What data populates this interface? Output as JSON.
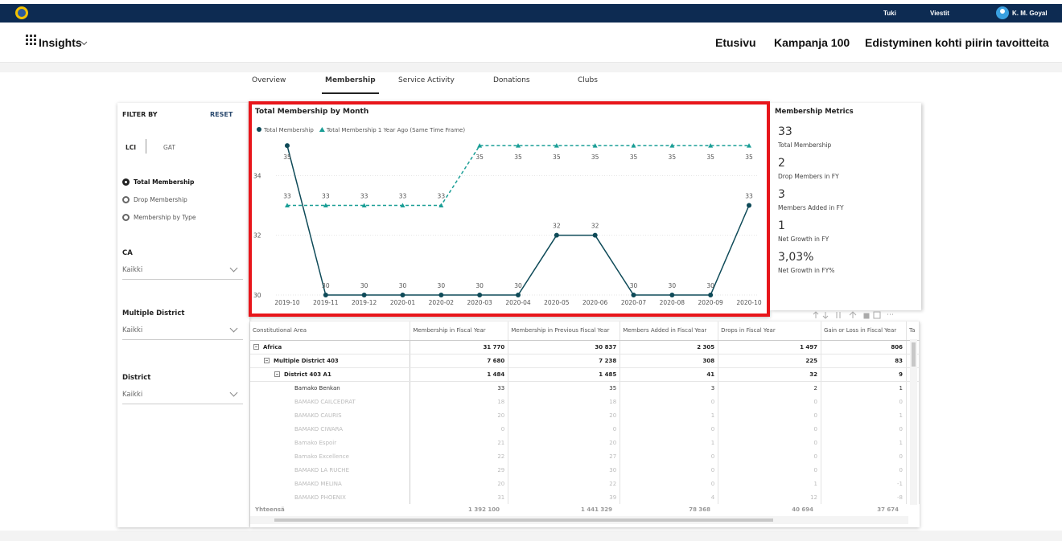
{
  "header": {
    "user_menu": [
      "Tuki",
      "Viestit"
    ],
    "user_name": "K. M. Goyal",
    "app_name": "Insights",
    "nav": [
      "Etusivu",
      "Kampanja 100",
      "Edistyminen kohti piirin tavoitteita"
    ]
  },
  "tabs": {
    "items": [
      "Overview",
      "Membership",
      "Service Activity",
      "Donations",
      "Clubs"
    ],
    "active": 1
  },
  "filters": {
    "title": "FILTER BY",
    "reset": "RESET",
    "toggle": [
      "LCI",
      "GAT"
    ],
    "options": [
      "Total Membership",
      "Drop Membership",
      "Membership by Type"
    ],
    "selected": 0,
    "dropdowns": [
      {
        "label": "CA",
        "value": "Kaikki"
      },
      {
        "label": "Multiple District",
        "value": "Kaikki"
      },
      {
        "label": "District",
        "value": "Kaikki"
      }
    ]
  },
  "chart_data": {
    "type": "line",
    "title": "Total Membership by Month",
    "categories": [
      "2019-10",
      "2019-11",
      "2019-12",
      "2020-01",
      "2020-02",
      "2020-03",
      "2020-04",
      "2020-05",
      "2020-06",
      "2020-07",
      "2020-08",
      "2020-09",
      "2020-10"
    ],
    "series": [
      {
        "name": "Total Membership",
        "color": "#0e4a58",
        "marker": "circle",
        "line_style": "solid",
        "values": [
          35,
          30,
          30,
          30,
          30,
          30,
          30,
          32,
          32,
          30,
          30,
          30,
          33
        ]
      },
      {
        "name": "Total Membership 1 Year Ago (Same Time Frame)",
        "color": "#1a9e96",
        "marker": "triangle",
        "line_style": "dashed",
        "values": [
          33,
          33,
          33,
          33,
          33,
          35,
          35,
          35,
          35,
          35,
          35,
          35,
          35
        ]
      }
    ],
    "ylim": [
      30,
      35.3
    ],
    "yticks": [
      30,
      32,
      34
    ],
    "grid": true
  },
  "metrics": {
    "title": "Membership Metrics",
    "items": [
      {
        "value": "33",
        "label": "Total Membership"
      },
      {
        "value": "2",
        "label": "Drop Members in FY"
      },
      {
        "value": "3",
        "label": "Members Added in FY"
      },
      {
        "value": "1",
        "label": "Net Growth in FY"
      },
      {
        "value": "3,03%",
        "label": "Net Growth in FY%"
      }
    ]
  },
  "table": {
    "columns": [
      "Constitutional Area",
      "Membership in Fiscal Year",
      "Membership in Previous Fiscal Year",
      "Members Added in Fiscal Year",
      "Drops in Fiscal Year",
      "Gain or Loss in Fiscal Year",
      "Ta"
    ],
    "tree": [
      {
        "cells": [
          "Africa",
          "31 770",
          "30 837",
          "2 305",
          "1 497",
          "806"
        ],
        "children": [
          {
            "cells": [
              "Multiple District 403",
              "7 680",
              "7 238",
              "308",
              "225",
              "83"
            ],
            "children": [
              {
                "cells": [
                  "District 403 A1",
                  "1 484",
                  "1 485",
                  "41",
                  "32",
                  "9"
                ],
                "children": [
                  {
                    "cells": [
                      "Bamako Benkan",
                      "33",
                      "35",
                      "3",
                      "2",
                      "1"
                    ]
                  },
                  {
                    "cells": [
                      "BAMAKO CAILCEDRAT",
                      "18",
                      "18",
                      "0",
                      "0",
                      "0"
                    ]
                  },
                  {
                    "cells": [
                      "BAMAKO CAURIS",
                      "20",
                      "20",
                      "1",
                      "0",
                      "1"
                    ]
                  },
                  {
                    "cells": [
                      "BAMAKO CIWARA",
                      "0",
                      "0",
                      "0",
                      "0",
                      "0"
                    ]
                  },
                  {
                    "cells": [
                      "Bamako Espoir",
                      "21",
                      "20",
                      "1",
                      "0",
                      "1"
                    ]
                  },
                  {
                    "cells": [
                      "Bamako Excellence",
                      "22",
                      "27",
                      "0",
                      "0",
                      "0"
                    ]
                  },
                  {
                    "cells": [
                      "BAMAKO LA RUCHE",
                      "29",
                      "30",
                      "0",
                      "0",
                      "0"
                    ]
                  },
                  {
                    "cells": [
                      "BAMAKO MELINA",
                      "20",
                      "22",
                      "0",
                      "1",
                      "-1"
                    ]
                  },
                  {
                    "cells": [
                      "BAMAKO PHOENIX",
                      "31",
                      "39",
                      "4",
                      "12",
                      "-8"
                    ]
                  }
                ]
              }
            ]
          }
        ]
      }
    ],
    "total": [
      "Yhteensä",
      "1 392 100",
      "1 441 329",
      "78 368",
      "40 694",
      "37 674"
    ]
  }
}
